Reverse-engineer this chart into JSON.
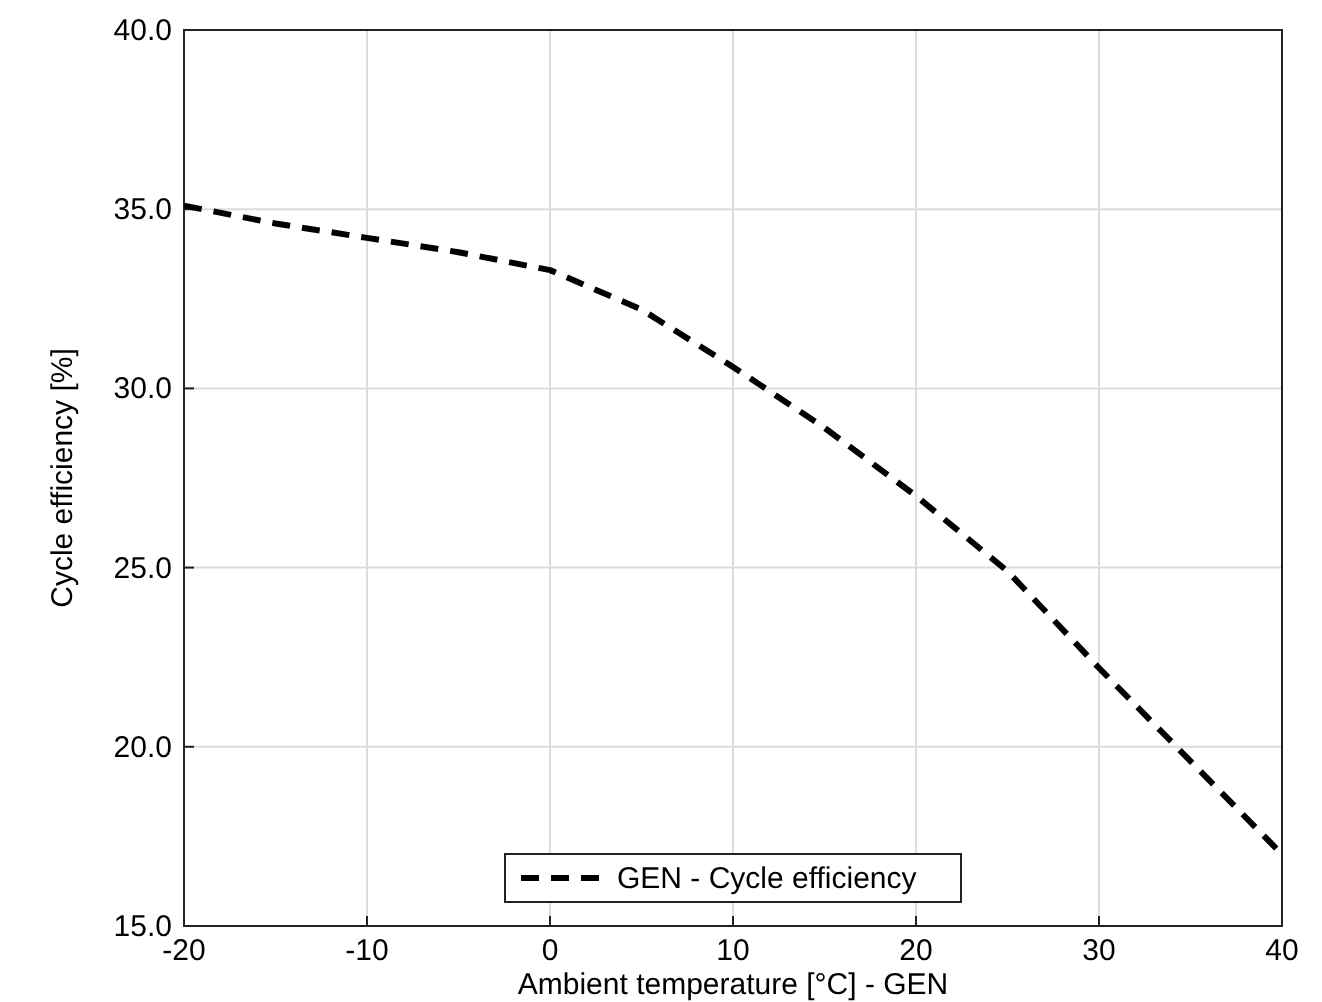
{
  "chart_data": {
    "type": "line",
    "xlabel": "Ambient temperature [°C] - GEN",
    "ylabel": "Cycle efficiency [%]",
    "x": [
      -20,
      -15,
      -10,
      -5,
      0,
      5,
      10,
      15,
      20,
      25,
      30,
      35,
      40
    ],
    "series": [
      {
        "name": "GEN - Cycle efficiency",
        "color": "#000000",
        "line_style": "dashed",
        "values": [
          35.1,
          34.6,
          34.2,
          33.8,
          33.3,
          32.2,
          30.6,
          28.9,
          27.0,
          24.9,
          22.2,
          19.6,
          17.0
        ]
      }
    ],
    "xlim": [
      -20,
      40
    ],
    "xticks": [
      -20,
      -10,
      0,
      10,
      20,
      30,
      40
    ],
    "ylim": [
      15,
      40
    ],
    "yticks": [
      {
        "value": 15,
        "label": "15.0"
      },
      {
        "value": 20,
        "label": "20.0"
      },
      {
        "value": 25,
        "label": "25.0"
      },
      {
        "value": 30,
        "label": "30.0"
      },
      {
        "value": 35,
        "label": "35.0"
      },
      {
        "value": 40,
        "label": "40.0"
      }
    ],
    "grid": true,
    "legend": "bottom"
  }
}
